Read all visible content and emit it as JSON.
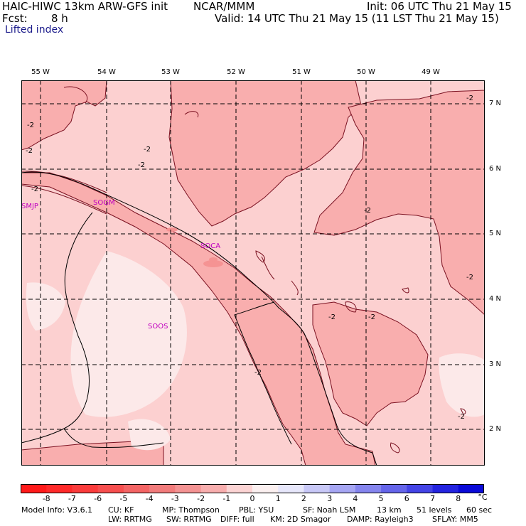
{
  "header": {
    "model": "HAIC-HIWC 13km ARW-GFS init",
    "org": "NCAR/MMM",
    "init": "Init: 06 UTC Thu 21 May 15",
    "fcst_label": "Fcst:",
    "fcst_value": "8 h",
    "valid": "Valid: 14 UTC Thu 21 May 15 (11 LST Thu 21 May 15)",
    "field": "Lifted index"
  },
  "map": {
    "lon_labels": [
      "55 W",
      "54 W",
      "53 W",
      "52 W",
      "51 W",
      "50 W",
      "49 W"
    ],
    "lat_labels": [
      "7 N",
      "6 N",
      "5 N",
      "4 N",
      "3 N",
      "2 N"
    ],
    "stations": [
      "SMJP",
      "SOGM",
      "SOCA",
      "SOOS"
    ],
    "contour_labels": [
      "-2",
      "-2",
      "-2",
      "-2",
      "-2",
      "-2",
      "-2",
      "-2",
      "-2",
      "-2",
      "-2",
      "-2"
    ],
    "colors": {
      "lightest": "#fce9e9",
      "light": "#fcd0d0",
      "mid": "#f9aeae",
      "darker": "#f59393",
      "darkest": "#f08080",
      "border": "#000000",
      "contour": "#7a1020",
      "station": "#c000c0",
      "grid": "#000000"
    }
  },
  "colorbar": {
    "labels": [
      "-8",
      "-7",
      "-6",
      "-5",
      "-4",
      "-3",
      "-2",
      "-1",
      "0",
      "1",
      "2",
      "3",
      "4",
      "5",
      "6",
      "7",
      "8"
    ],
    "unit": "°C",
    "colors": [
      "#ff1a1a",
      "#ff2a2a",
      "#fb3c3c",
      "#f74f4f",
      "#f46565",
      "#f27c7c",
      "#f49393",
      "#f8aeae",
      "#fcd4d4",
      "#fbf0f0",
      "#e7e7fb",
      "#c8c8f7",
      "#a6a6f3",
      "#8585ee",
      "#6565ea",
      "#4444e6",
      "#2424e0",
      "#0a0ad8"
    ]
  },
  "footer": {
    "line1": [
      "Model Info: V3.6.1",
      "CU: KF",
      "MP: Thompson",
      "PBL: YSU",
      "SF: Noah LSM",
      "13 km",
      "51 levels",
      "60 sec"
    ],
    "line2": [
      "LW: RRTMG",
      "SW: RRTMG",
      "DIFF: full",
      "KM: 2D Smagor",
      "DAMP: Rayleigh3",
      "SFLAY: MM5"
    ]
  }
}
